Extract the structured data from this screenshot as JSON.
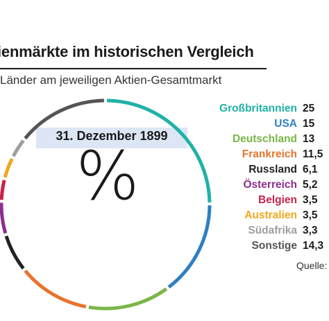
{
  "header": {
    "title": "ienmärkte im historischen Vergleich",
    "subtitle": "Länder am jeweiligen Aktien-Gesamtmarkt"
  },
  "chart_data": {
    "type": "pie",
    "style": "donut",
    "center_label": "31. Dezember 1899",
    "center_symbol": "%",
    "categories": [
      "Großbritannien",
      "USA",
      "Deutschland",
      "Frankreich",
      "Russland",
      "Österreich",
      "Belgien",
      "Australien",
      "Südafrika",
      "Sonstige"
    ],
    "values": [
      25,
      15,
      13,
      11.5,
      6.1,
      5.2,
      3.5,
      3.5,
      3.3,
      14.3
    ],
    "value_labels": [
      "25",
      "15",
      "13",
      "11,5",
      "6,1",
      "5,2",
      "3,5",
      "3,5",
      "3,3",
      "14,3"
    ],
    "colors": [
      "#1fb2a6",
      "#2f7fc1",
      "#7ab648",
      "#e8732a",
      "#222222",
      "#8e2e8f",
      "#c8234a",
      "#f0a81c",
      "#9e9e9e",
      "#555555"
    ],
    "legend_placement": "right"
  },
  "footer": {
    "source_label": "Quelle:"
  }
}
